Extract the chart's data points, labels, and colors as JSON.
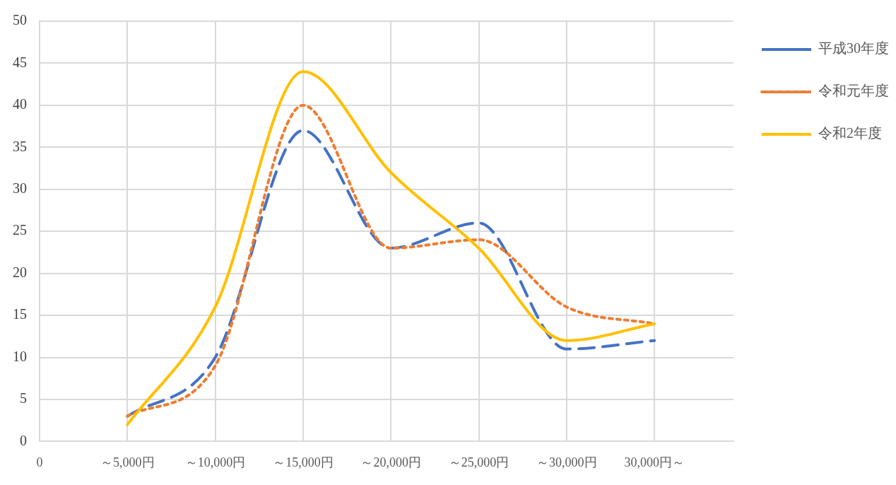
{
  "chart_data": {
    "type": "line",
    "categories": [
      "0",
      "～5,000円",
      "～10,000円",
      "～15,000円",
      "～20,000円",
      "～25,000円",
      "～30,000円",
      "30,000円～"
    ],
    "ylim": [
      0,
      50
    ],
    "yticks": [
      0,
      5,
      10,
      15,
      20,
      25,
      30,
      35,
      40,
      45,
      50
    ],
    "series": [
      {
        "name": "平成30年度",
        "color": "#4472c4",
        "line_style": "dashed",
        "values": [
          null,
          3,
          10,
          37,
          23,
          26,
          11,
          12
        ]
      },
      {
        "name": "令和元年度",
        "color": "#ed7d31",
        "line_style": "dotted",
        "values": [
          null,
          3,
          9,
          40,
          23,
          24,
          16,
          14
        ]
      },
      {
        "name": "令和2年度",
        "color": "#ffc000",
        "line_style": "solid",
        "values": [
          null,
          2,
          16,
          44,
          32,
          23,
          12,
          14
        ]
      }
    ],
    "grid": true,
    "legend": "right",
    "marker": "none"
  }
}
